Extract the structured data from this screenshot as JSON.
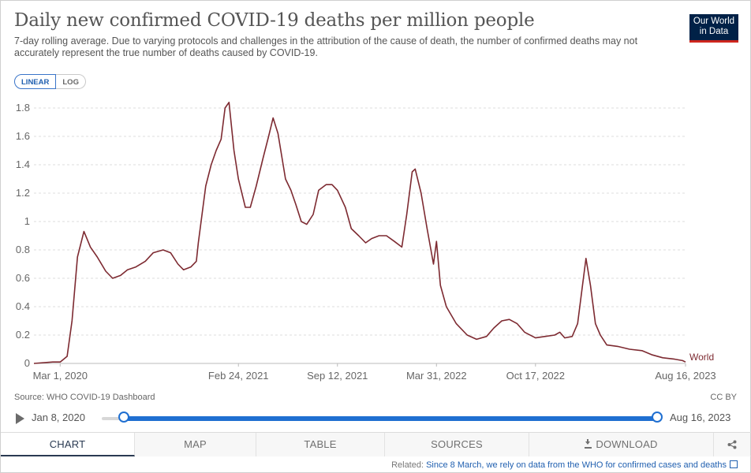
{
  "header": {
    "title": "Daily new confirmed COVID-19 deaths per million people",
    "subtitle": "7-day rolling average. Due to varying protocols and challenges in the attribution of the cause of death, the number of confirmed deaths may not accurately represent the true number of deaths caused by COVID-19.",
    "logo_line1": "Our World",
    "logo_line2": "in Data"
  },
  "scale_toggle": {
    "linear": "LINEAR",
    "log": "LOG",
    "selected": "LINEAR"
  },
  "footer": {
    "source": "Source: WHO COVID-19 Dashboard",
    "license": "CC BY",
    "related_prefix": "Related: ",
    "related_link": "Since 8 March, we rely on data from the WHO for confirmed cases and deaths"
  },
  "timeline": {
    "start_label": "Jan 8, 2020",
    "end_label": "Aug 16, 2023",
    "range_start_fraction": 0.0,
    "range_end_fraction": 1.0
  },
  "tabs": [
    {
      "label": "CHART",
      "active": true
    },
    {
      "label": "MAP",
      "active": false
    },
    {
      "label": "TABLE",
      "active": false
    },
    {
      "label": "SOURCES",
      "active": false
    },
    {
      "label": "DOWNLOAD",
      "active": false
    }
  ],
  "icons": {
    "play": "play-icon",
    "share": "share-icon",
    "download": "download-icon",
    "external": "external-link-icon"
  },
  "colors": {
    "series": "#7d2a31",
    "accent": "#1f6fd1",
    "logo_bg": "#002147",
    "logo_accent": "#ce261e"
  },
  "chart_data": {
    "type": "line",
    "title": "Daily new confirmed COVID-19 deaths per million people",
    "xlabel": "",
    "ylabel": "",
    "y_ticks": [
      0,
      0.2,
      0.4,
      0.6,
      0.8,
      1,
      1.2,
      1.4,
      1.6,
      1.8
    ],
    "y_tick_labels": [
      "0",
      "0.2",
      "0.4",
      "0.6",
      "0.8",
      "1",
      "1.2",
      "1.4",
      "1.6",
      "1.8"
    ],
    "ylim": [
      0,
      1.9
    ],
    "x_ticks": [
      "2020-03-01",
      "2021-02-24",
      "2021-09-12",
      "2022-03-31",
      "2022-10-17",
      "2023-08-16"
    ],
    "x_tick_labels": [
      "Mar 1, 2020",
      "Feb 24, 2021",
      "Sep 12, 2021",
      "Mar 31, 2022",
      "Oct 17, 2022",
      "Aug 16, 2023"
    ],
    "xlim": [
      "2020-01-08",
      "2023-08-16"
    ],
    "grid": "horizontal dashed",
    "legend": "end-label",
    "series": [
      {
        "name": "World",
        "color": "#7d2a31",
        "points": [
          [
            "2020-01-08",
            0.0
          ],
          [
            "2020-02-15",
            0.01
          ],
          [
            "2020-03-01",
            0.01
          ],
          [
            "2020-03-15",
            0.05
          ],
          [
            "2020-03-25",
            0.3
          ],
          [
            "2020-04-05",
            0.75
          ],
          [
            "2020-04-18",
            0.93
          ],
          [
            "2020-05-01",
            0.82
          ],
          [
            "2020-05-15",
            0.75
          ],
          [
            "2020-06-01",
            0.65
          ],
          [
            "2020-06-15",
            0.6
          ],
          [
            "2020-07-01",
            0.62
          ],
          [
            "2020-07-15",
            0.66
          ],
          [
            "2020-08-01",
            0.68
          ],
          [
            "2020-08-20",
            0.72
          ],
          [
            "2020-09-05",
            0.78
          ],
          [
            "2020-09-25",
            0.8
          ],
          [
            "2020-10-10",
            0.78
          ],
          [
            "2020-10-25",
            0.7
          ],
          [
            "2020-11-05",
            0.66
          ],
          [
            "2020-11-20",
            0.68
          ],
          [
            "2020-12-01",
            0.72
          ],
          [
            "2020-12-05",
            0.85
          ],
          [
            "2020-12-20",
            1.25
          ],
          [
            "2020-12-31",
            1.4
          ],
          [
            "2021-01-10",
            1.5
          ],
          [
            "2021-01-20",
            1.58
          ],
          [
            "2021-01-28",
            1.8
          ],
          [
            "2021-02-05",
            1.84
          ],
          [
            "2021-02-15",
            1.5
          ],
          [
            "2021-02-24",
            1.3
          ],
          [
            "2021-03-10",
            1.1
          ],
          [
            "2021-03-20",
            1.1
          ],
          [
            "2021-04-01",
            1.25
          ],
          [
            "2021-04-15",
            1.45
          ],
          [
            "2021-04-26",
            1.6
          ],
          [
            "2021-05-05",
            1.73
          ],
          [
            "2021-05-15",
            1.62
          ],
          [
            "2021-05-30",
            1.3
          ],
          [
            "2021-06-10",
            1.22
          ],
          [
            "2021-06-20",
            1.12
          ],
          [
            "2021-07-01",
            1.0
          ],
          [
            "2021-07-12",
            0.98
          ],
          [
            "2021-07-25",
            1.05
          ],
          [
            "2021-08-05",
            1.22
          ],
          [
            "2021-08-20",
            1.26
          ],
          [
            "2021-09-01",
            1.26
          ],
          [
            "2021-09-12",
            1.22
          ],
          [
            "2021-09-28",
            1.1
          ],
          [
            "2021-10-10",
            0.95
          ],
          [
            "2021-10-25",
            0.9
          ],
          [
            "2021-11-08",
            0.85
          ],
          [
            "2021-11-20",
            0.88
          ],
          [
            "2021-12-05",
            0.9
          ],
          [
            "2021-12-20",
            0.9
          ],
          [
            "2022-01-05",
            0.86
          ],
          [
            "2022-01-20",
            0.82
          ],
          [
            "2022-01-30",
            1.05
          ],
          [
            "2022-02-10",
            1.35
          ],
          [
            "2022-02-16",
            1.37
          ],
          [
            "2022-02-28",
            1.2
          ],
          [
            "2022-03-12",
            0.95
          ],
          [
            "2022-03-25",
            0.7
          ],
          [
            "2022-03-31",
            0.86
          ],
          [
            "2022-04-08",
            0.55
          ],
          [
            "2022-04-20",
            0.4
          ],
          [
            "2022-05-10",
            0.28
          ],
          [
            "2022-06-01",
            0.2
          ],
          [
            "2022-06-20",
            0.17
          ],
          [
            "2022-07-10",
            0.19
          ],
          [
            "2022-07-25",
            0.25
          ],
          [
            "2022-08-10",
            0.3
          ],
          [
            "2022-08-25",
            0.31
          ],
          [
            "2022-09-10",
            0.28
          ],
          [
            "2022-09-25",
            0.22
          ],
          [
            "2022-10-17",
            0.18
          ],
          [
            "2022-11-05",
            0.19
          ],
          [
            "2022-11-25",
            0.2
          ],
          [
            "2022-12-05",
            0.22
          ],
          [
            "2022-12-15",
            0.18
          ],
          [
            "2022-12-30",
            0.19
          ],
          [
            "2023-01-10",
            0.28
          ],
          [
            "2023-01-20",
            0.55
          ],
          [
            "2023-01-27",
            0.74
          ],
          [
            "2023-02-05",
            0.55
          ],
          [
            "2023-02-15",
            0.28
          ],
          [
            "2023-02-25",
            0.2
          ],
          [
            "2023-03-10",
            0.13
          ],
          [
            "2023-04-01",
            0.12
          ],
          [
            "2023-04-25",
            0.1
          ],
          [
            "2023-05-20",
            0.09
          ],
          [
            "2023-06-10",
            0.06
          ],
          [
            "2023-07-01",
            0.04
          ],
          [
            "2023-07-25",
            0.03
          ],
          [
            "2023-08-10",
            0.02
          ],
          [
            "2023-08-16",
            0.01
          ]
        ]
      }
    ]
  }
}
